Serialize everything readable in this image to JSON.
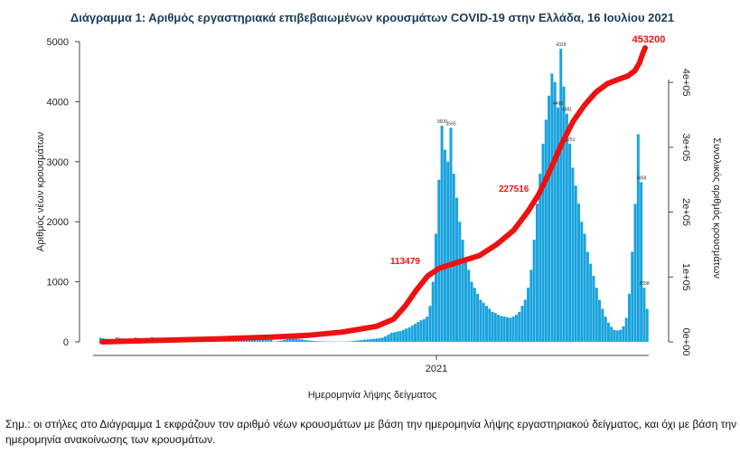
{
  "chart_data": {
    "type": "bar+line",
    "title": "Διάγραμμα 1: Αριθμός εργαστηριακά επιβεβαιωμένων κρουσμάτων COVID-19 στην Ελλάδα, 16 Ιουλίου 2021",
    "xlabel": "Ημερομηνία λήψης δείγματος",
    "ylabel_left": "Αριθμός νέων κρουσμάτων",
    "ylabel_right": "Συνολικός αριθμός κρουσμάτων",
    "x_tick_labels": [
      "2021"
    ],
    "left_ylim": [
      0,
      5000
    ],
    "left_ticks": [
      "0",
      "1000",
      "2000",
      "3000",
      "4000",
      "5000"
    ],
    "right_ylim": [
      0,
      453200
    ],
    "right_ticks": [
      "0e+00",
      "1e+05",
      "2e+05",
      "3e+05",
      "4e+05"
    ],
    "bar_color": "#1aa3dd",
    "line_color": "#ee1111",
    "annotations": [
      "453200",
      "113479",
      "227516"
    ],
    "bar_peak_labels": [
      "3600",
      "3565",
      "4881",
      "4468",
      "4329",
      "4251",
      "3458",
      "2658"
    ],
    "series": [
      {
        "name": "Νέα κρούσματα",
        "kind": "bar",
        "values": [
          5,
          8,
          12,
          20,
          35,
          50,
          70,
          80,
          60,
          50,
          40,
          30,
          25,
          20,
          15,
          12,
          10,
          8,
          6,
          5,
          5,
          4,
          4,
          3,
          3,
          5,
          8,
          12,
          18,
          25,
          30,
          35,
          40,
          45,
          50,
          55,
          60,
          70,
          90,
          120,
          150,
          160,
          170,
          180,
          200,
          220,
          240,
          270,
          300,
          330,
          360,
          380,
          420,
          600,
          1000,
          1800,
          2700,
          3600,
          3200,
          3000,
          3565,
          2800,
          2400,
          2000,
          1700,
          1400,
          1200,
          1000,
          900,
          800,
          700,
          650,
          600,
          550,
          500,
          480,
          450,
          430,
          420,
          410,
          400,
          420,
          450,
          500,
          600,
          700,
          900,
          1200,
          1700,
          2300,
          2800,
          3300,
          3700,
          4100,
          4468,
          4329,
          3900,
          4881,
          4251,
          3800,
          3300,
          2900,
          2600,
          2300,
          2000,
          1800,
          1500,
          1300,
          1100,
          900,
          700,
          550,
          420,
          320,
          250,
          200,
          190,
          200,
          260,
          400,
          800,
          1500,
          2300,
          3458,
          2658,
          900,
          550
        ]
      },
      {
        "name": "Συνολικά κρούσματα",
        "kind": "line",
        "points": [
          {
            "d": 0,
            "v": 0
          },
          {
            "d": 40,
            "v": 2000
          },
          {
            "d": 100,
            "v": 4500
          },
          {
            "d": 150,
            "v": 7500
          },
          {
            "d": 180,
            "v": 10000
          },
          {
            "d": 210,
            "v": 15000
          },
          {
            "d": 240,
            "v": 24000
          },
          {
            "d": 255,
            "v": 35000
          },
          {
            "d": 265,
            "v": 55000
          },
          {
            "d": 275,
            "v": 80000
          },
          {
            "d": 285,
            "v": 102000
          },
          {
            "d": 295,
            "v": 113479
          },
          {
            "d": 310,
            "v": 122000
          },
          {
            "d": 330,
            "v": 133000
          },
          {
            "d": 345,
            "v": 150000
          },
          {
            "d": 360,
            "v": 172000
          },
          {
            "d": 372,
            "v": 200000
          },
          {
            "d": 382,
            "v": 227516
          },
          {
            "d": 392,
            "v": 265000
          },
          {
            "d": 402,
            "v": 305000
          },
          {
            "d": 412,
            "v": 340000
          },
          {
            "d": 422,
            "v": 365000
          },
          {
            "d": 432,
            "v": 385000
          },
          {
            "d": 442,
            "v": 398000
          },
          {
            "d": 452,
            "v": 405000
          },
          {
            "d": 460,
            "v": 410000
          },
          {
            "d": 466,
            "v": 418000
          },
          {
            "d": 470,
            "v": 430000
          },
          {
            "d": 473,
            "v": 445000
          },
          {
            "d": 475,
            "v": 453200
          }
        ]
      }
    ]
  },
  "note": "Σημ.: οι στήλες στο Διάγραμμα 1 εκφράζουν τον αριθμό νέων κρουσμάτων με βάση την ημερομηνία λήψης εργαστηριακού δείγματος, και όχι με βάση την ημερομηνία ανακοίνωσης των κρουσμάτων."
}
